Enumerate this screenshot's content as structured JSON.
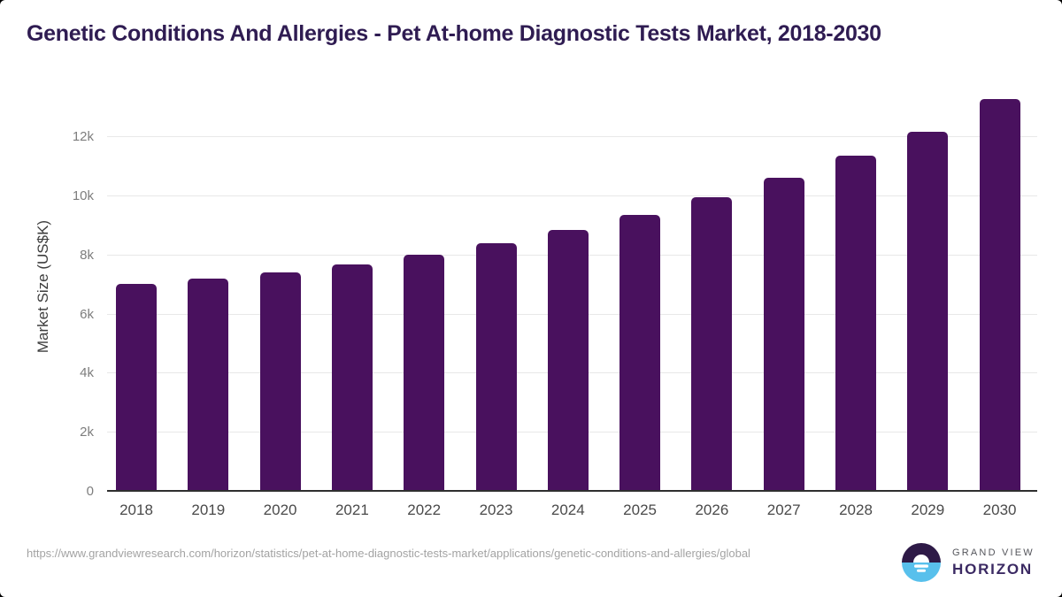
{
  "chart_data": {
    "type": "bar",
    "title": "Genetic Conditions And Allergies - Pet At-home Diagnostic Tests Market, 2018-2030",
    "xlabel": "",
    "ylabel": "Market Size (US$K)",
    "categories": [
      "2018",
      "2019",
      "2020",
      "2021",
      "2022",
      "2023",
      "2024",
      "2025",
      "2026",
      "2027",
      "2028",
      "2029",
      "2030"
    ],
    "values": [
      7050,
      7220,
      7420,
      7700,
      8020,
      8420,
      8860,
      9360,
      9970,
      10620,
      11370,
      12200,
      13300
    ],
    "series_name": "Market Size (US$K)",
    "ylim": [
      0,
      13650
    ],
    "yticks": [
      {
        "value": 0,
        "label": "0"
      },
      {
        "value": 2000,
        "label": "2k"
      },
      {
        "value": 4000,
        "label": "4k"
      },
      {
        "value": 6000,
        "label": "6k"
      },
      {
        "value": 8000,
        "label": "8k"
      },
      {
        "value": 10000,
        "label": "10k"
      },
      {
        "value": 12000,
        "label": "12k"
      }
    ],
    "grid": "horizontal",
    "legend": "none",
    "bar_color": "#49115e"
  },
  "colors": {
    "bar": "#49115e",
    "title_text": "#2f1c52",
    "axis_line": "#2f2f2f",
    "gridline": "#e8e8e8",
    "y_tick_text": "#7d7d7d",
    "x_tick_text": "#4a4a4a",
    "source_text": "#a3a3a3",
    "logo_purple": "#2e1a47",
    "logo_blue": "#58c0ec",
    "logo_grand_view_text": "#54555b",
    "logo_horizon_text": "#3b2a63"
  },
  "footer": {
    "source_url": "https://www.grandviewresearch.com/horizon/statistics/pet-at-home-diagnostic-tests-market/applications/genetic-conditions-and-allergies/global",
    "logo": {
      "top_text": "GRAND VIEW",
      "bottom_text": "HORIZON",
      "icon": "sunset-horizon-icon"
    }
  }
}
